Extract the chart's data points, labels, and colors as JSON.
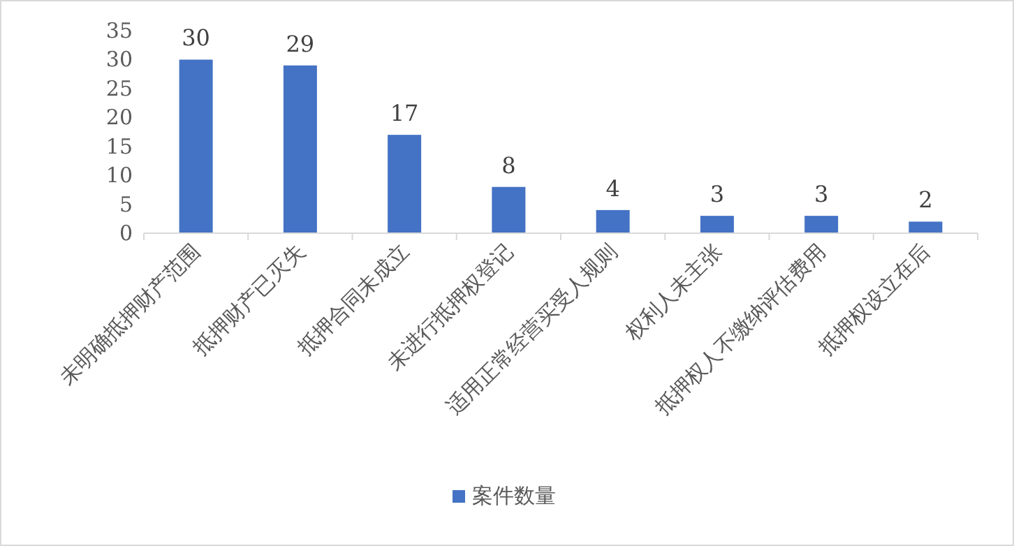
{
  "chart_data": {
    "type": "bar",
    "categories": [
      "未明确抵押财产范围",
      "抵押财产已灭失",
      "抵押合同未成立",
      "未进行抵押权登记",
      "适用正常经营买受人规则",
      "权利人未主张",
      "抵押权人不缴纳评估费用",
      "抵押权设立在后"
    ],
    "series": [
      {
        "name": "案件数量",
        "color": "#4472c4",
        "values": [
          30,
          29,
          17,
          8,
          4,
          3,
          3,
          2
        ]
      }
    ],
    "ylim": [
      0,
      35
    ],
    "yticks": [
      0,
      5,
      10,
      15,
      20,
      25,
      30,
      35
    ],
    "data_labels": true,
    "legend": "bottom",
    "grid": false
  }
}
